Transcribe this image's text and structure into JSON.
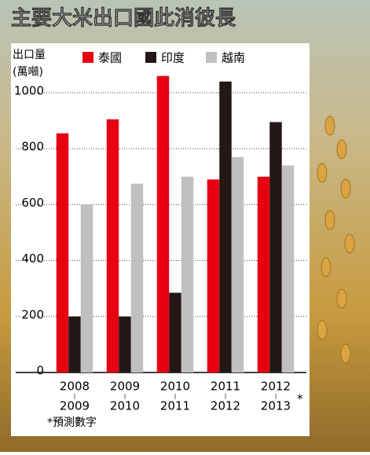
{
  "chart_data": {
    "type": "bar",
    "title": "主要大米出口國此消彼長",
    "y_label": [
      "出口量",
      "(萬噸)"
    ],
    "categories": [
      [
        "2008",
        "2009"
      ],
      [
        "2009",
        "2010"
      ],
      [
        "2010",
        "2011"
      ],
      [
        "2011",
        "2012"
      ],
      [
        "2012",
        "2013"
      ]
    ],
    "category_note": "*",
    "footnote": "*預測數字",
    "series": [
      {
        "name": "泰國",
        "color": "#e60012",
        "values": [
          855,
          905,
          1060,
          690,
          700
        ]
      },
      {
        "name": "印度",
        "color": "#231815",
        "values": [
          200,
          200,
          285,
          1040,
          895
        ]
      },
      {
        "name": "越南",
        "color": "#c0c0c0",
        "values": [
          600,
          675,
          700,
          770,
          740
        ]
      }
    ],
    "ylim": [
      0,
      1100
    ],
    "yticks": [
      0,
      200,
      400,
      600,
      800,
      1000
    ],
    "grid": true
  }
}
